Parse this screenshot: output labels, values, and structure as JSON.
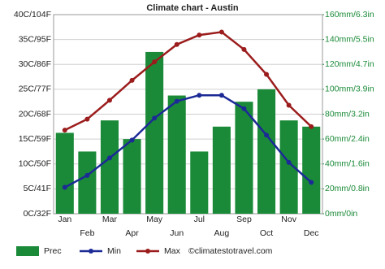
{
  "chart_data": {
    "type": "bar-line",
    "title": "Climate chart - Austin",
    "categories": [
      "Jan",
      "Feb",
      "Mar",
      "Apr",
      "May",
      "Jun",
      "Jul",
      "Aug",
      "Sep",
      "Oct",
      "Nov",
      "Dec"
    ],
    "series": [
      {
        "name": "Prec",
        "type": "bar",
        "axis": "y2",
        "color": "#1a8a38",
        "values": [
          65,
          50,
          75,
          60,
          130,
          95,
          50,
          70,
          90,
          100,
          75,
          70
        ]
      },
      {
        "name": "Min",
        "type": "line",
        "color": "#1c2a96",
        "values": [
          5.3,
          7.7,
          11.2,
          14.8,
          19.2,
          22.6,
          23.8,
          23.8,
          21.1,
          15.8,
          10.3,
          6.3
        ]
      },
      {
        "name": "Max",
        "type": "line",
        "color": "#9b1c1c",
        "values": [
          16.8,
          19,
          22.8,
          26.8,
          30.5,
          34,
          35.9,
          36.5,
          33,
          28,
          21.8,
          17.5
        ]
      }
    ],
    "ylim": [
      0,
      40
    ],
    "yticks": [
      {
        "value": 0,
        "label": "0C/32F"
      },
      {
        "value": 5,
        "label": "5C/41F"
      },
      {
        "value": 10,
        "label": "10C/50F"
      },
      {
        "value": 15,
        "label": "15C/59F"
      },
      {
        "value": 20,
        "label": "20C/68F"
      },
      {
        "value": 25,
        "label": "25C/77F"
      },
      {
        "value": 30,
        "label": "30C/86F"
      },
      {
        "value": 35,
        "label": "35C/95F"
      },
      {
        "value": 40,
        "label": "40C/104F"
      }
    ],
    "y2lim": [
      0,
      160
    ],
    "y2ticks": [
      {
        "value": 0,
        "label": "0mm/0in"
      },
      {
        "value": 20,
        "label": "20mm/0.8in"
      },
      {
        "value": 40,
        "label": "40mm/1.6in"
      },
      {
        "value": 60,
        "label": "60mm/2.4in"
      },
      {
        "value": 80,
        "label": "80mm/3.2in"
      },
      {
        "value": 100,
        "label": "100mm/3.9in"
      },
      {
        "value": 120,
        "label": "120mm/4.7in"
      },
      {
        "value": 140,
        "label": "140mm/5.5in"
      },
      {
        "value": 160,
        "label": "160mm/6.3in"
      }
    ],
    "grid": true,
    "source": "©climatestotravel.com"
  }
}
